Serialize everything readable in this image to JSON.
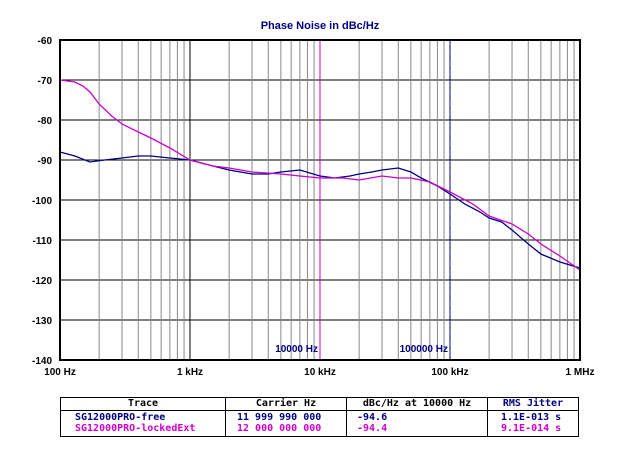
{
  "colors": {
    "series1": "#000080",
    "series2": "#cc00cc",
    "title": "#000080",
    "grid": "#000000",
    "marker1": "#cc00cc",
    "marker2": "#0000cc"
  },
  "chart_data": {
    "type": "line",
    "title": "Phase Noise in dBc/Hz",
    "xscale": "log",
    "xlim": [
      100,
      1000000
    ],
    "ylim": [
      -140,
      -60
    ],
    "yticks": [
      -60,
      -70,
      -80,
      -90,
      -100,
      -110,
      -120,
      -130,
      -140
    ],
    "ytick_labels": [
      "-60",
      "-70",
      "-80",
      "-90",
      "-100",
      "-110",
      "-120",
      "-130",
      "-140"
    ],
    "xticks": [
      100,
      1000,
      10000,
      100000,
      1000000
    ],
    "xtick_labels": [
      "100 Hz",
      "1 kHz",
      "10 kHz",
      "100 kHz",
      "1 MHz"
    ],
    "grid": true,
    "markers": [
      {
        "x": 10000,
        "label": "10000 Hz",
        "style": "solid"
      },
      {
        "x": 100000,
        "label": "100000 Hz",
        "style": "dashed"
      }
    ],
    "series": [
      {
        "name": "SG12000PRO-free",
        "x": [
          100,
          130,
          170,
          220,
          300,
          400,
          500,
          700,
          1000,
          1500,
          2000,
          3000,
          4000,
          5000,
          7000,
          10000,
          13000,
          17000,
          20000,
          25000,
          30000,
          40000,
          50000,
          60000,
          80000,
          100000,
          130000,
          170000,
          200000,
          250000,
          300000,
          400000,
          500000,
          700000,
          1000000
        ],
        "y": [
          -88,
          -89,
          -90.5,
          -90,
          -89.5,
          -89,
          -89,
          -89.5,
          -90,
          -91.5,
          -92.5,
          -93.5,
          -93.5,
          -93,
          -92.5,
          -94,
          -94.5,
          -94,
          -93.5,
          -93,
          -92.5,
          -92,
          -93,
          -94.5,
          -96.5,
          -98.5,
          -101,
          -103,
          -104.5,
          -105.5,
          -107.5,
          -111,
          -113.5,
          -115.5,
          -117
        ]
      },
      {
        "name": "SG12000PRO-lockedExt",
        "x": [
          100,
          130,
          150,
          170,
          200,
          250,
          300,
          400,
          500,
          700,
          1000,
          1500,
          2000,
          3000,
          5000,
          7000,
          10000,
          15000,
          20000,
          30000,
          40000,
          50000,
          70000,
          100000,
          150000,
          200000,
          300000,
          400000,
          500000,
          700000,
          1000000
        ],
        "y": [
          -70,
          -70.5,
          -71.5,
          -73,
          -76,
          -79,
          -81,
          -83,
          -84.5,
          -87,
          -90,
          -91.5,
          -92,
          -93,
          -93.5,
          -94,
          -94.5,
          -94.5,
          -95,
          -94,
          -94.5,
          -94.5,
          -95.5,
          -98,
          -101,
          -104,
          -106,
          -108.5,
          -111,
          -114,
          -117.5
        ]
      }
    ]
  },
  "table": {
    "headers": [
      "Trace",
      "Carrier Hz",
      "dBc/Hz at 10000 Hz",
      "RMS Jitter"
    ],
    "rows": [
      {
        "trace": "SG12000PRO-free",
        "carrier": "11 999 990 000",
        "dbc": "-94.6",
        "jitter": "1.1E-013 s"
      },
      {
        "trace": "SG12000PRO-lockedExt",
        "carrier": "12 000 000 000",
        "dbc": "-94.4",
        "jitter": "9.1E-014 s"
      }
    ]
  }
}
